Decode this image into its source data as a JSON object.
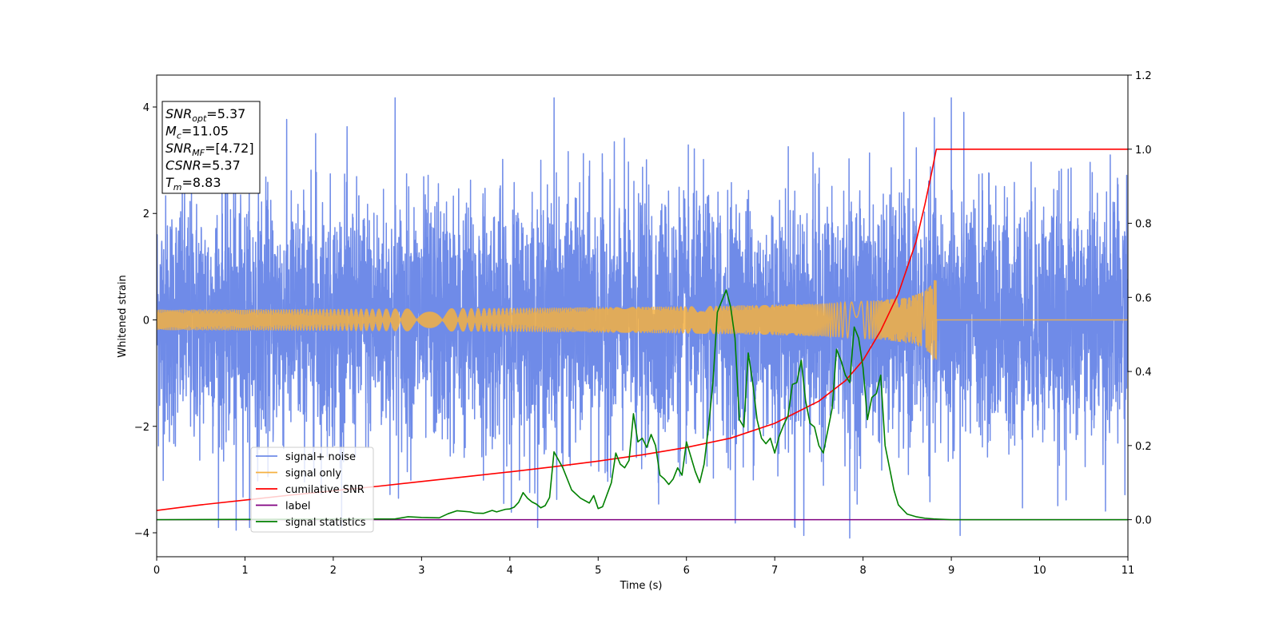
{
  "chart_data": {
    "type": "line",
    "xlabel": "Time (s)",
    "ylabel": "Whitened strain",
    "xlim": [
      0,
      11
    ],
    "ylim": [
      -4.45,
      4.6
    ],
    "ylim_right": [
      -0.1,
      1.2
    ],
    "x_ticks": [
      0,
      1,
      2,
      3,
      4,
      5,
      6,
      7,
      8,
      9,
      10,
      11
    ],
    "y_ticks": [
      -4,
      -2,
      0,
      2,
      4
    ],
    "y_ticks_right": [
      0.0,
      0.2,
      0.4,
      0.6,
      0.8,
      1.0,
      1.2
    ],
    "y_tick_labels_right": [
      "0.0",
      "0.2",
      "0.4",
      "0.6",
      "0.8",
      "1.0",
      "1.2"
    ],
    "legend_position": "lower-left",
    "annotation": [
      {
        "base": "SNR",
        "sub": "opt",
        "value": "=5.37"
      },
      {
        "base": "M",
        "sub": "c",
        "value": "=11.05"
      },
      {
        "base": "SNR",
        "sub": "MF",
        "value": "=[4.72]"
      },
      {
        "base": "CSNR",
        "sub": "",
        "value": "=5.37"
      },
      {
        "base": "T",
        "sub": "m",
        "value": "=8.83"
      }
    ],
    "series": [
      {
        "name": "signal+ noise",
        "axis": "left",
        "color": "#6f8be8",
        "kind": "noise",
        "std": 1.15,
        "peaks": [
          [
            0.9,
            -3.95
          ],
          [
            1.8,
            3.5
          ],
          [
            2.7,
            3.95
          ],
          [
            4.5,
            4.2
          ],
          [
            7.23,
            -3.9
          ],
          [
            7.33,
            -4.05
          ],
          [
            7.85,
            -4.1
          ],
          [
            9.0,
            4.2
          ],
          [
            9.1,
            -4.05
          ],
          [
            10.8,
            3.1
          ]
        ]
      },
      {
        "name": "signal only",
        "axis": "left",
        "color": "#f5b041",
        "kind": "chirp",
        "merger_time": 8.83,
        "peak_amplitude": 0.75
      },
      {
        "name": "cumilative SNR",
        "axis": "right",
        "color": "#ff0000",
        "x": [
          0,
          0.5,
          1,
          1.5,
          2,
          2.5,
          3,
          3.5,
          4,
          4.5,
          5,
          5.5,
          6,
          6.5,
          7,
          7.5,
          7.8,
          8.0,
          8.2,
          8.4,
          8.6,
          8.7,
          8.78,
          8.83,
          9,
          10,
          11
        ],
        "y": [
          0.025,
          0.04,
          0.053,
          0.066,
          0.078,
          0.09,
          0.103,
          0.116,
          0.129,
          0.143,
          0.158,
          0.175,
          0.195,
          0.22,
          0.26,
          0.32,
          0.375,
          0.43,
          0.51,
          0.61,
          0.75,
          0.85,
          0.94,
          1.0,
          1.0,
          1.0,
          1.0
        ]
      },
      {
        "name": "label",
        "axis": "right",
        "color": "#800080",
        "x": [
          0,
          11
        ],
        "y": [
          0.0,
          0.0
        ]
      },
      {
        "name": "signal statistics",
        "axis": "right",
        "color": "#008000",
        "x": [
          0,
          2.7,
          2.85,
          3.0,
          3.2,
          3.3,
          3.4,
          3.55,
          3.6,
          3.7,
          3.8,
          3.85,
          3.95,
          4.0,
          4.05,
          4.1,
          4.15,
          4.2,
          4.25,
          4.3,
          4.35,
          4.4,
          4.45,
          4.5,
          4.6,
          4.7,
          4.8,
          4.9,
          4.95,
          5.0,
          5.05,
          5.15,
          5.2,
          5.25,
          5.3,
          5.35,
          5.4,
          5.45,
          5.5,
          5.55,
          5.6,
          5.65,
          5.7,
          5.75,
          5.8,
          5.85,
          5.9,
          5.95,
          6.0,
          6.05,
          6.1,
          6.15,
          6.2,
          6.25,
          6.3,
          6.35,
          6.4,
          6.45,
          6.5,
          6.55,
          6.6,
          6.65,
          6.7,
          6.75,
          6.8,
          6.85,
          6.9,
          6.95,
          7.0,
          7.05,
          7.1,
          7.15,
          7.2,
          7.25,
          7.3,
          7.35,
          7.4,
          7.45,
          7.5,
          7.55,
          7.6,
          7.65,
          7.7,
          7.75,
          7.8,
          7.85,
          7.9,
          7.95,
          8.0,
          8.05,
          8.1,
          8.15,
          8.2,
          8.25,
          8.3,
          8.35,
          8.4,
          8.5,
          8.6,
          8.7,
          8.8,
          9.0,
          9.2,
          9.4,
          9.6,
          10.0,
          10.2,
          10.4,
          10.6,
          10.8,
          11.0
        ],
        "y": [
          0.0,
          0.002,
          0.008,
          0.006,
          0.005,
          0.016,
          0.024,
          0.021,
          0.018,
          0.017,
          0.025,
          0.021,
          0.028,
          0.029,
          0.034,
          0.047,
          0.073,
          0.058,
          0.048,
          0.042,
          0.032,
          0.038,
          0.06,
          0.183,
          0.14,
          0.08,
          0.058,
          0.045,
          0.065,
          0.03,
          0.035,
          0.1,
          0.18,
          0.15,
          0.14,
          0.16,
          0.286,
          0.21,
          0.22,
          0.195,
          0.23,
          0.2,
          0.12,
          0.11,
          0.095,
          0.11,
          0.14,
          0.12,
          0.21,
          0.17,
          0.13,
          0.1,
          0.15,
          0.25,
          0.37,
          0.56,
          0.59,
          0.62,
          0.575,
          0.49,
          0.27,
          0.25,
          0.45,
          0.37,
          0.27,
          0.22,
          0.205,
          0.22,
          0.18,
          0.225,
          0.255,
          0.28,
          0.365,
          0.37,
          0.43,
          0.32,
          0.26,
          0.25,
          0.2,
          0.18,
          0.24,
          0.3,
          0.46,
          0.43,
          0.39,
          0.37,
          0.52,
          0.49,
          0.41,
          0.27,
          0.33,
          0.34,
          0.39,
          0.2,
          0.14,
          0.08,
          0.04,
          0.015,
          0.008,
          0.004,
          0.002,
          0.0,
          0.0,
          0.0,
          0.0,
          0.0,
          0.0,
          0.0,
          0.0,
          0.0,
          0.0
        ]
      }
    ]
  }
}
